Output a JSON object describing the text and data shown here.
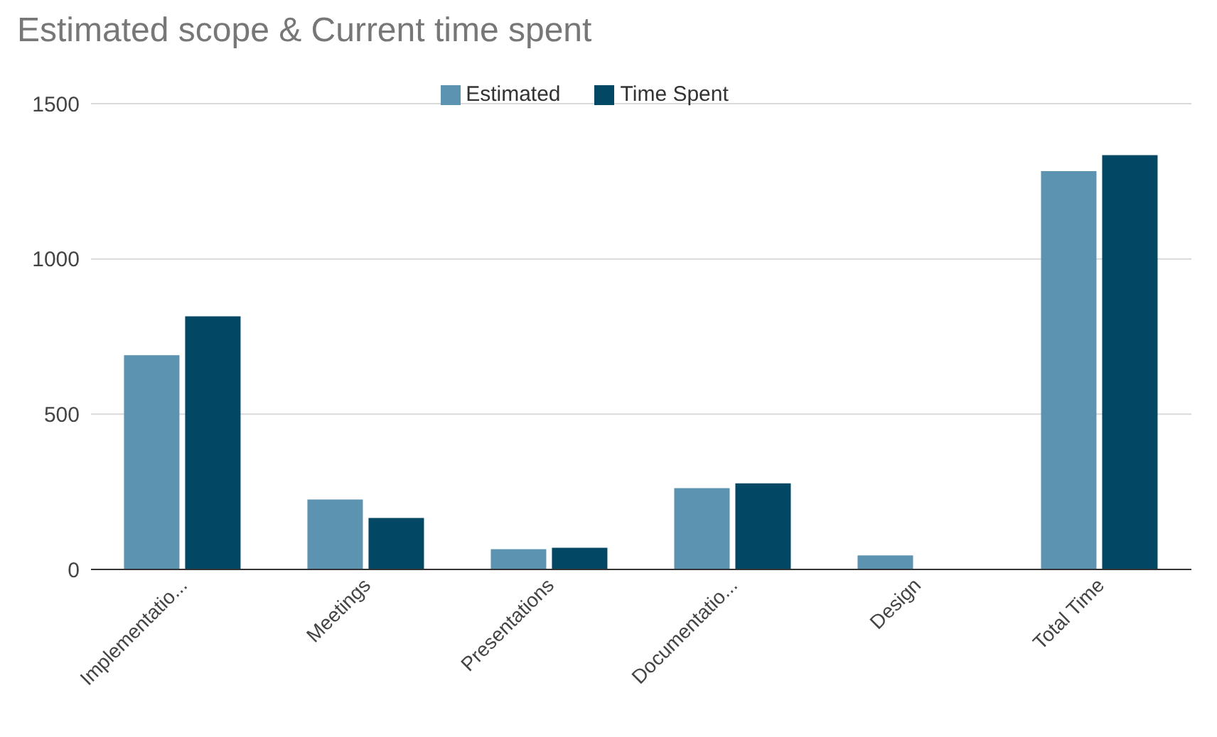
{
  "chart_data": {
    "type": "bar",
    "title": "Estimated scope & Current time spent",
    "categories": [
      "Implementatio...",
      "Meetings",
      "Presentations",
      "Documentatio...",
      "Design",
      "Total Time"
    ],
    "series": [
      {
        "name": "Estimated",
        "color": "#5b93b0",
        "values": [
          690,
          225,
          65,
          262,
          45,
          1283
        ]
      },
      {
        "name": "Time Spent",
        "color": "#024764",
        "values": [
          815,
          166,
          70,
          277,
          0,
          1334
        ]
      }
    ],
    "ylim": [
      0,
      1500
    ],
    "yticks": [
      0,
      500,
      1000,
      1500
    ],
    "grid": "y",
    "legend": "top"
  }
}
